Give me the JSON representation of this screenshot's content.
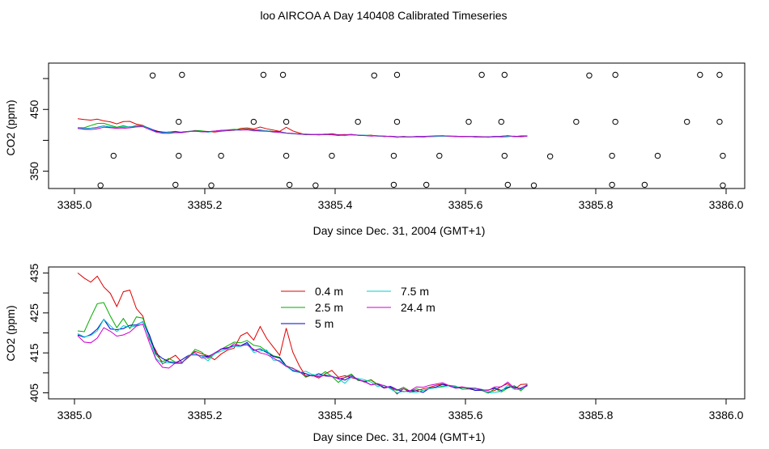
{
  "page": {
    "title": "loo AIRCOA A  Day 140408  Calibrated Timeseries"
  },
  "colors": {
    "0.4 m": "#dd0000",
    "2.5 m": "#00aa00",
    "5 m": "#0000cc",
    "7.5 m": "#00cccc",
    "24.4 m": "#cc00cc",
    "axis": "#000000",
    "background": "#ffffff"
  },
  "chart_data": [
    {
      "type": "line",
      "xlabel": "Day since Dec. 31, 2004 (GMT+1)",
      "ylabel": "CO2 (ppm)",
      "xlim": [
        3385.0,
        3386.0
      ],
      "ylim": [
        322,
        525
      ],
      "xticks": [
        3385.0,
        3385.2,
        3385.4,
        3385.6,
        3385.8,
        3386.0
      ],
      "xtick_labels": [
        "3385.0",
        "3385.2",
        "3385.4",
        "3385.6",
        "3385.8",
        "3386.0"
      ],
      "yticks": [
        350,
        400,
        450,
        500
      ],
      "ytick_labels": [
        "350",
        "",
        "450",
        ""
      ],
      "grid": false,
      "legend": "none",
      "scatter_points": [
        [
          3385.04,
          327
        ],
        [
          3385.06,
          375
        ],
        [
          3385.12,
          505
        ],
        [
          3385.155,
          328
        ],
        [
          3385.16,
          375
        ],
        [
          3385.16,
          430
        ],
        [
          3385.165,
          506
        ],
        [
          3385.21,
          327
        ],
        [
          3385.225,
          375
        ],
        [
          3385.275,
          430
        ],
        [
          3385.29,
          506
        ],
        [
          3385.32,
          506
        ],
        [
          3385.325,
          430
        ],
        [
          3385.325,
          375
        ],
        [
          3385.33,
          328
        ],
        [
          3385.37,
          327
        ],
        [
          3385.395,
          375
        ],
        [
          3385.435,
          430
        ],
        [
          3385.46,
          505
        ],
        [
          3385.49,
          328
        ],
        [
          3385.49,
          375
        ],
        [
          3385.495,
          430
        ],
        [
          3385.495,
          506
        ],
        [
          3385.54,
          328
        ],
        [
          3385.56,
          375
        ],
        [
          3385.605,
          430
        ],
        [
          3385.625,
          506
        ],
        [
          3385.655,
          430
        ],
        [
          3385.66,
          506
        ],
        [
          3385.66,
          375
        ],
        [
          3385.665,
          328
        ],
        [
          3385.705,
          327
        ],
        [
          3385.73,
          374
        ],
        [
          3385.77,
          430
        ],
        [
          3385.79,
          505
        ],
        [
          3385.825,
          328
        ],
        [
          3385.825,
          375
        ],
        [
          3385.83,
          430
        ],
        [
          3385.83,
          506
        ],
        [
          3385.875,
          328
        ],
        [
          3385.895,
          375
        ],
        [
          3385.94,
          430
        ],
        [
          3385.96,
          506
        ],
        [
          3385.99,
          506
        ],
        [
          3385.99,
          430
        ],
        [
          3385.995,
          375
        ],
        [
          3385.995,
          327
        ]
      ],
      "series": [
        {
          "name": "0.4 m",
          "key": "s04",
          "values": [
            435,
            433.7,
            432.7,
            434.2,
            431.5,
            429.9,
            426.6,
            430.3,
            430.7,
            426.1,
            424.2,
            418.3,
            415.6,
            412.2,
            413.4,
            414.4,
            412.6,
            413.9,
            415.4,
            414.8,
            414.3,
            413.3,
            414.7,
            415.7,
            416.2,
            419.3,
            420.1,
            418.2,
            421.6,
            418.6,
            416.5,
            414.4,
            421.2,
            415.2,
            411.8,
            409.1,
            409.4,
            408.7,
            409.8,
            410.6,
            408.9,
            409.3,
            408.8,
            408.4,
            407.7,
            408.3,
            407.1,
            406.2,
            406.5,
            404.7,
            406.1,
            405.1,
            405.6,
            406.0,
            406.4,
            406.9,
            407.2,
            406.8,
            406.4,
            406.5,
            406.0,
            405.7,
            405.6,
            405.2,
            405.6,
            406.6,
            407.3,
            405.9,
            407.1,
            407.2
          ]
        },
        {
          "name": "2.5 m",
          "key": "s25",
          "values": [
            420.5,
            420.3,
            423.9,
            427.3,
            427.6,
            424.2,
            421.3,
            423.6,
            421.1,
            424.0,
            423.7,
            419.3,
            414.6,
            412.8,
            413.6,
            412.7,
            412.5,
            413.9,
            415.9,
            415.2,
            413.6,
            414.7,
            415.9,
            416.8,
            417.7,
            417.5,
            418.1,
            416.9,
            416.6,
            415.4,
            414.3,
            413.9,
            411.8,
            411.1,
            410.4,
            408.9,
            409.5,
            409.2,
            410.3,
            409.1,
            407.6,
            408.9,
            409.7,
            408.1,
            407.9,
            408.2,
            407.0,
            406.8,
            406.1,
            405.6,
            406.4,
            405.4,
            406.0,
            405.6,
            406.1,
            406.3,
            406.7,
            406.9,
            406.7,
            405.9,
            406.0,
            406.1,
            405.6,
            404.9,
            406.1,
            405.2,
            406.2,
            406.8,
            405.5,
            407.0
          ]
        },
        {
          "name": "5 m",
          "key": "s5",
          "values": [
            419.5,
            418.9,
            419.6,
            421.0,
            423.4,
            421.0,
            420.8,
            421.1,
            421.9,
            422.0,
            422.8,
            419.5,
            414.9,
            413.6,
            412.8,
            412.5,
            413.3,
            414.4,
            414.6,
            414.3,
            414.1,
            414.9,
            416.0,
            416.3,
            416.8,
            416.8,
            417.6,
            415.6,
            416.0,
            415.1,
            414.1,
            413.7,
            411.7,
            410.6,
            410.2,
            409.8,
            409.2,
            409.8,
            409.2,
            409.1,
            408.7,
            408.2,
            409.1,
            408.3,
            407.9,
            407.0,
            407.3,
            406.3,
            406.6,
            405.8,
            405.3,
            405.5,
            405.5,
            405.1,
            406.2,
            406.5,
            407.1,
            406.7,
            406.2,
            406.3,
            406.2,
            405.6,
            405.7,
            405.7,
            406.2,
            405.6,
            406.4,
            406.5,
            406.0,
            406.8
          ]
        },
        {
          "name": "7.5 m",
          "key": "s75",
          "values": [
            419.8,
            419.0,
            419.4,
            420.5,
            423.4,
            421.8,
            420.3,
            421.8,
            421.4,
            421.8,
            422.9,
            418.7,
            413.6,
            412.4,
            412.6,
            412.3,
            412.3,
            414.4,
            414.5,
            414.2,
            413.0,
            414.8,
            415.4,
            416.0,
            416.7,
            416.6,
            417.3,
            415.1,
            415.5,
            415.7,
            413.2,
            413.1,
            411.7,
            410.4,
            410.1,
            410.4,
            409.6,
            409.3,
            409.5,
            409.2,
            408.5,
            407.4,
            409.0,
            408.6,
            408.3,
            407.7,
            406.6,
            406.9,
            406.0,
            405.0,
            405.4,
            405.2,
            405.1,
            405.6,
            406.1,
            406.3,
            406.5,
            406.8,
            406.6,
            406.3,
            406.3,
            406.1,
            405.9,
            405.0,
            405.1,
            405.4,
            406.9,
            405.9,
            405.8,
            407.1
          ]
        },
        {
          "name": "24.4 m",
          "key": "s244",
          "values": [
            419.3,
            417.7,
            417.5,
            418.7,
            421.3,
            420.4,
            419.2,
            419.5,
            420.2,
            421.7,
            422.2,
            417.5,
            413.4,
            411.4,
            411.2,
            412.5,
            412.6,
            414.2,
            415.1,
            413.7,
            413.9,
            415.0,
            415.9,
            416.1,
            417.3,
            416.8,
            417.0,
            415.9,
            415.0,
            414.6,
            413.7,
            412.8,
            411.6,
            411.2,
            410.2,
            409.3,
            409.3,
            409.0,
            409.4,
            409.1,
            408.5,
            408.8,
            409.4,
            408.3,
            407.8,
            407.0,
            407.3,
            406.8,
            406.3,
            405.8,
            406.0,
            405.5,
            406.5,
            406.4,
            406.9,
            407.2,
            407.5,
            406.8,
            406.2,
            406.5,
            406.2,
            406.2,
            405.8,
            405.6,
            406.5,
            406.5,
            407.7,
            406.2,
            406.2,
            407.0
          ]
        }
      ],
      "x_start": 3385.005,
      "x_step": 0.01
    },
    {
      "type": "line",
      "xlabel": "Day since Dec. 31, 2004 (GMT+1)",
      "ylabel": "CO2 (ppm)",
      "xlim": [
        3385.0,
        3386.0
      ],
      "ylim": [
        403.5,
        436.5
      ],
      "xticks": [
        3385.0,
        3385.2,
        3385.4,
        3385.6,
        3385.8,
        3386.0
      ],
      "xtick_labels": [
        "3385.0",
        "3385.2",
        "3385.4",
        "3385.6",
        "3385.8",
        "3386.0"
      ],
      "yticks": [
        405,
        410,
        415,
        420,
        425,
        430,
        435
      ],
      "ytick_labels": [
        "405",
        "",
        "415",
        "",
        "425",
        "",
        "435"
      ],
      "grid": false,
      "legend": "top-center",
      "legend_entries": [
        "0.4 m",
        "7.5 m",
        "2.5 m",
        "24.4 m",
        "5 m"
      ],
      "series_ref": "same as chart_data.0.series"
    }
  ]
}
